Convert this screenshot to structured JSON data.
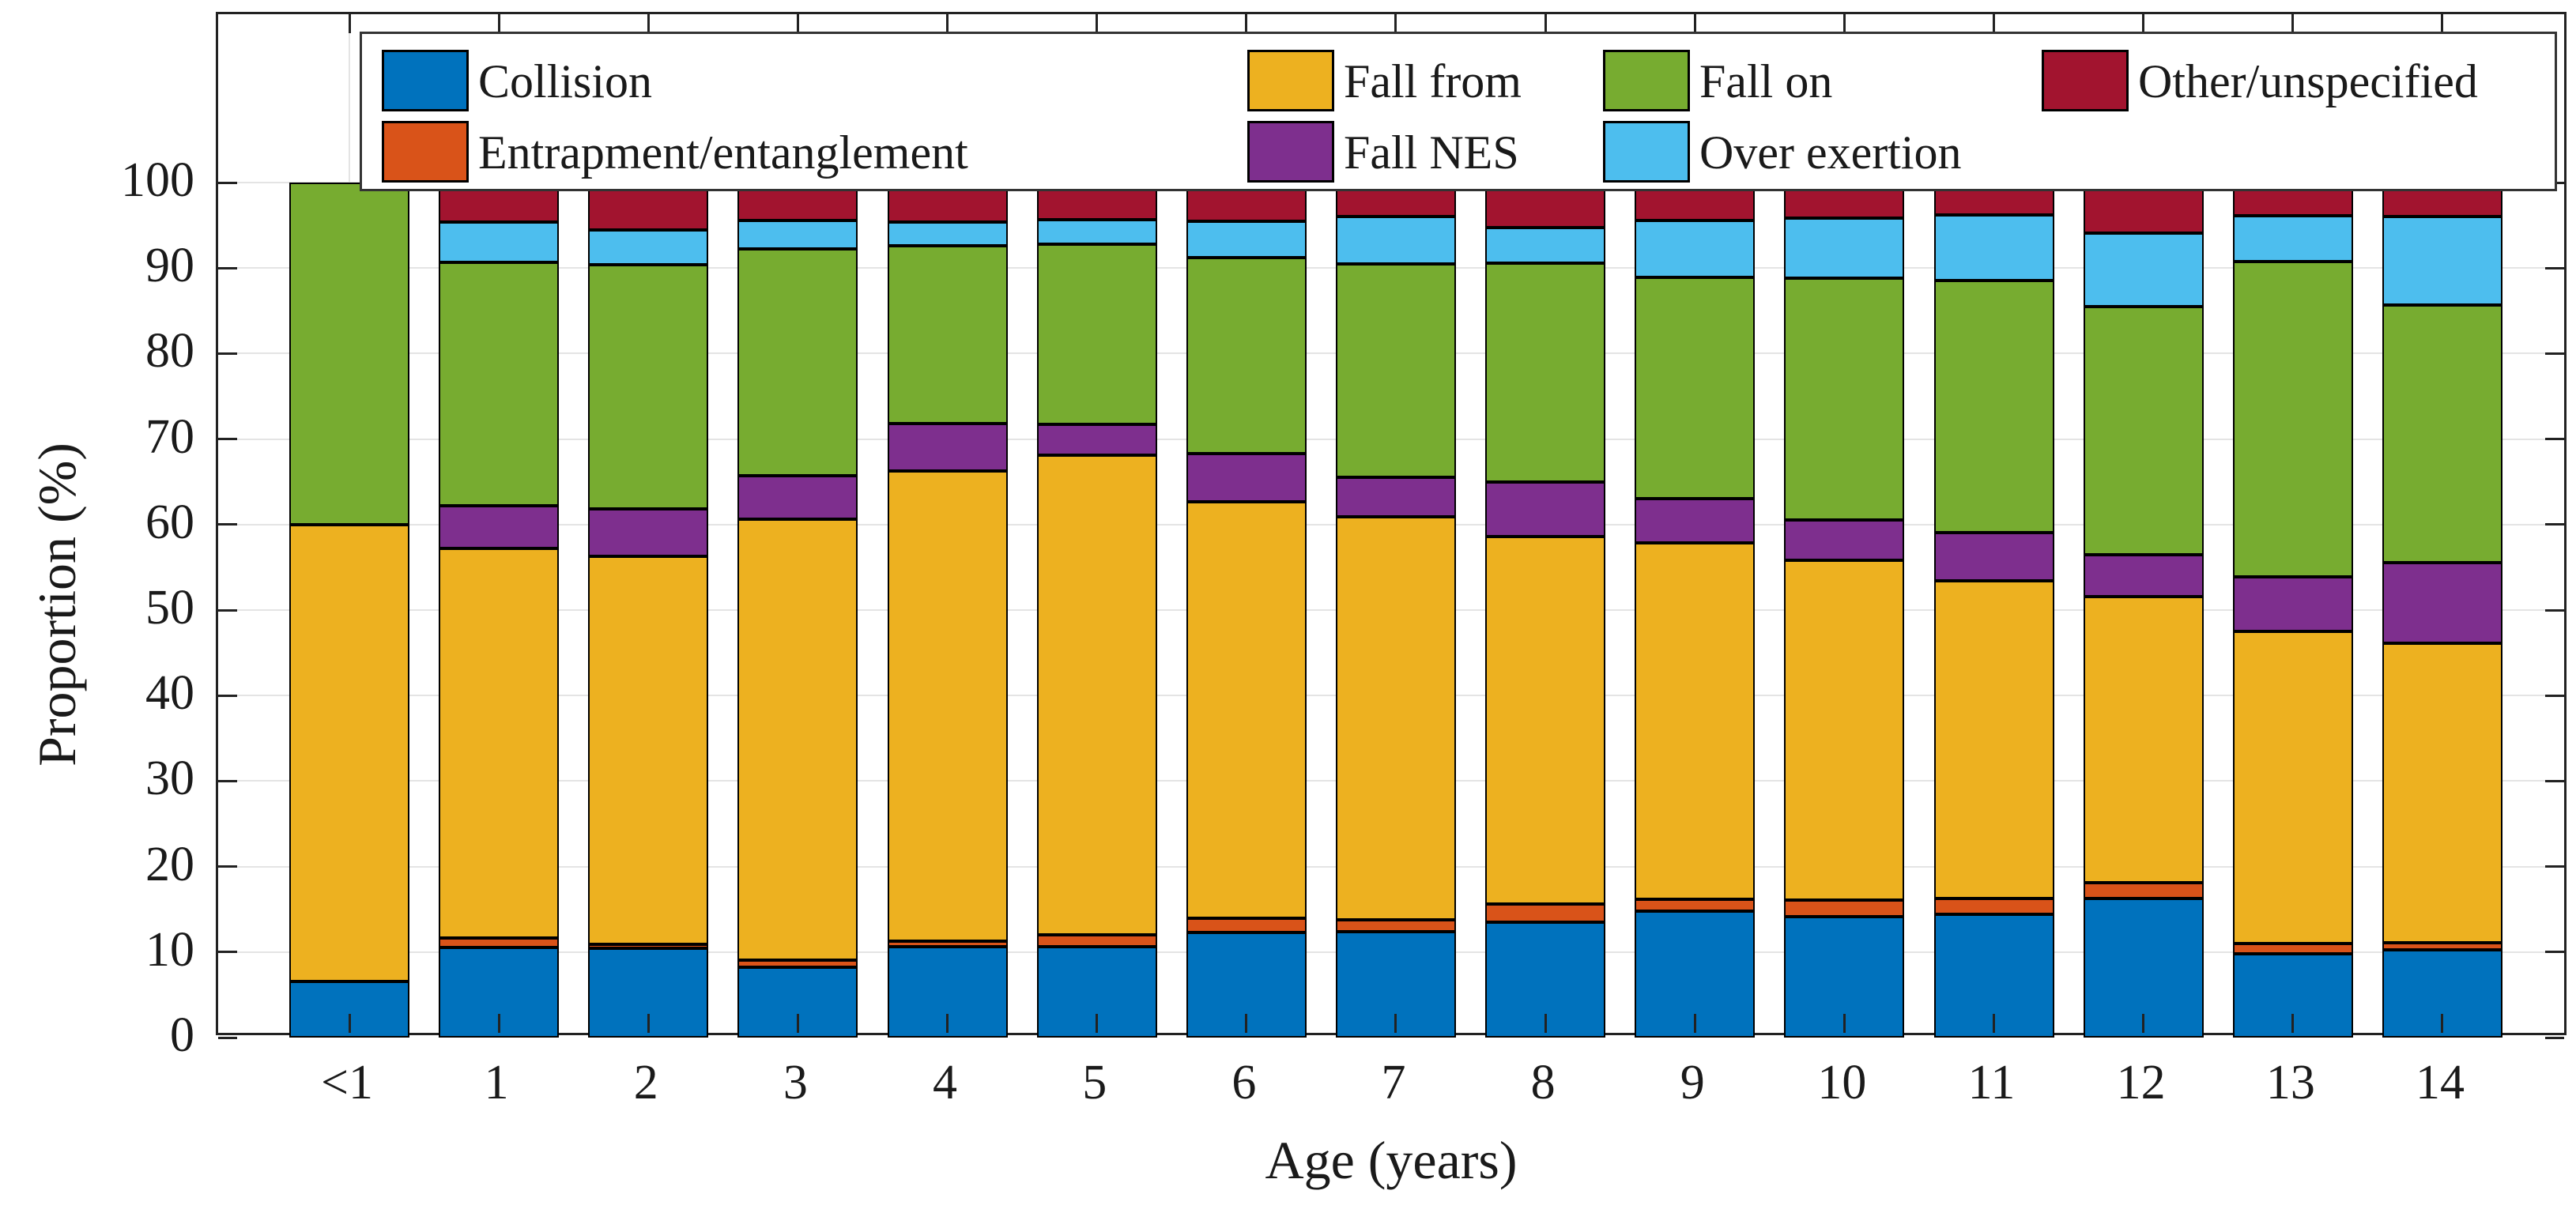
{
  "chart_data": {
    "type": "bar",
    "stacked": true,
    "percent_stacked": true,
    "title": "",
    "xlabel": "Age (years)",
    "ylabel": "Proportion (%)",
    "categories": [
      "<1",
      "1",
      "2",
      "3",
      "4",
      "5",
      "6",
      "7",
      "8",
      "9",
      "10",
      "11",
      "12",
      "13",
      "14"
    ],
    "y_ticks": [
      "0",
      "10",
      "20",
      "30",
      "40",
      "50",
      "60",
      "70",
      "80",
      "90",
      "100"
    ],
    "ylim": [
      0,
      120
    ],
    "grid": true,
    "legend_position": "top-inside",
    "legend_columns": 4,
    "series": [
      {
        "name": "Collision",
        "color": "#0072BD",
        "values": [
          6.6,
          10.5,
          10.4,
          8.2,
          10.6,
          10.6,
          12.3,
          12.4,
          13.5,
          14.8,
          14.1,
          14.4,
          16.3,
          9.8,
          10.3
        ]
      },
      {
        "name": "Entrapment/entanglement",
        "color": "#D95319",
        "values": [
          0,
          1.1,
          0.5,
          0.9,
          0.7,
          1.4,
          1.7,
          1.4,
          2.1,
          1.4,
          2.0,
          1.9,
          1.8,
          1.2,
          0.8
        ]
      },
      {
        "name": "Fall from",
        "color": "#EDB120",
        "values": [
          53.4,
          45.6,
          45.4,
          51.5,
          55.0,
          56.1,
          48.7,
          47.1,
          43.0,
          41.7,
          39.7,
          37.1,
          33.5,
          36.5,
          35.0
        ]
      },
      {
        "name": "Fall NES",
        "color": "#7E2F8E",
        "values": [
          0,
          5.0,
          5.5,
          5.1,
          5.5,
          3.6,
          5.6,
          4.6,
          6.4,
          5.1,
          4.7,
          5.7,
          4.9,
          6.4,
          9.4
        ]
      },
      {
        "name": "Fall on",
        "color": "#77AC30",
        "values": [
          40.0,
          28.5,
          28.6,
          26.5,
          20.8,
          21.1,
          22.9,
          25.0,
          25.6,
          25.9,
          28.3,
          29.4,
          29.0,
          36.9,
          30.2
        ]
      },
      {
        "name": "Over exertion",
        "color": "#4DBEEE",
        "values": [
          0,
          4.7,
          4.1,
          3.4,
          2.8,
          2.9,
          4.3,
          5.5,
          4.1,
          6.7,
          7.0,
          7.7,
          8.6,
          5.3,
          10.3
        ]
      },
      {
        "name": "Other/unspecified",
        "color": "#A2142F",
        "values": [
          0,
          4.6,
          5.5,
          4.4,
          4.6,
          4.3,
          4.5,
          4.0,
          5.3,
          4.4,
          4.2,
          3.8,
          5.9,
          3.9,
          4.0
        ]
      }
    ],
    "legend_layout": {
      "row1": [
        "Collision",
        "Fall from",
        "Fall on",
        "Other/unspecified"
      ],
      "row2": [
        "Entrapment/entanglement",
        "Fall NES",
        "Over exertion"
      ]
    }
  }
}
